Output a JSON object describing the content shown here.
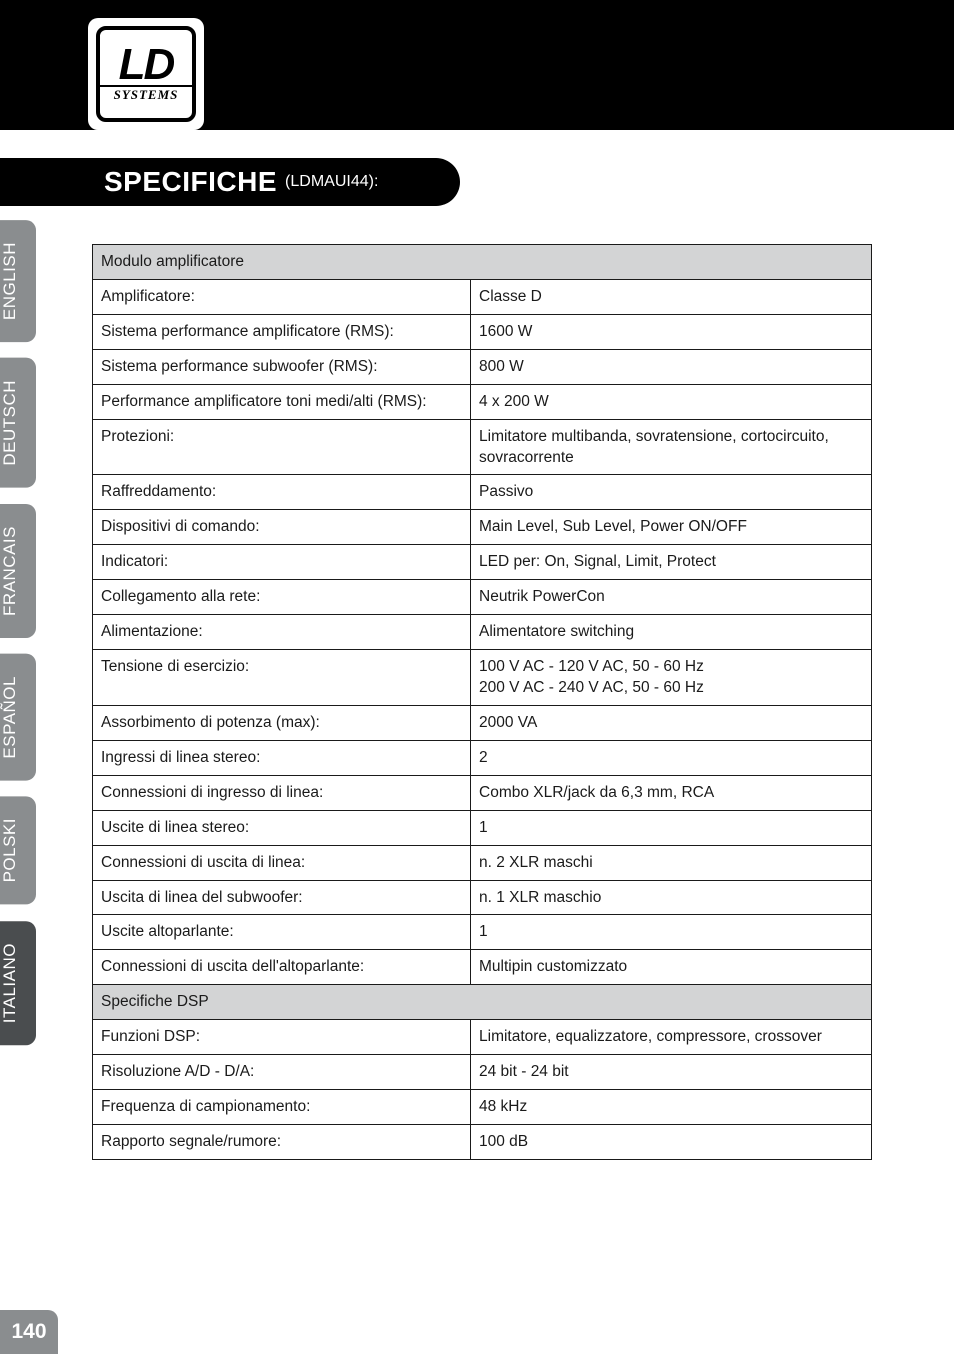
{
  "logo": {
    "main": "LD",
    "sub": "SYSTEMS"
  },
  "title": {
    "main": "SPECIFICHE",
    "sub": "(LDMAUI44):"
  },
  "sidebar": [
    {
      "label": "ENGLISH",
      "class": "tab-grey"
    },
    {
      "label": "DEUTSCH",
      "class": "tab-grey"
    },
    {
      "label": "FRANCAIS",
      "class": "tab-grey"
    },
    {
      "label": "ESPAÑOL",
      "class": "tab-grey"
    },
    {
      "label": "POLSKI",
      "class": "tab-grey"
    },
    {
      "label": "ITALIANO",
      "class": "tab-dark"
    }
  ],
  "table": {
    "sections": [
      {
        "header": "Modulo amplificatore",
        "rows": [
          {
            "label": "Amplificatore:",
            "value": "Classe D"
          },
          {
            "label": "Sistema performance amplificatore (RMS):",
            "value": "1600 W"
          },
          {
            "label": "Sistema performance subwoofer (RMS):",
            "value": "800 W"
          },
          {
            "label": "Performance amplificatore toni medi/alti (RMS):",
            "value": "4 x 200 W"
          },
          {
            "label": "Protezioni:",
            "value": "Limitatore multibanda, sovratensione, cortocircuito, sovracorrente"
          },
          {
            "label": "Raffreddamento:",
            "value": "Passivo"
          },
          {
            "label": "Dispositivi di comando:",
            "value": "Main Level, Sub Level, Power ON/OFF"
          },
          {
            "label": "Indicatori:",
            "value": "LED per: On, Signal, Limit, Protect"
          },
          {
            "label": "Collegamento alla rete:",
            "value": "Neutrik PowerCon"
          },
          {
            "label": "Alimentazione:",
            "value": "Alimentatore switching"
          },
          {
            "label": "Tensione di esercizio:",
            "value": "100 V AC - 120 V AC, 50 - 60 Hz\n200 V AC - 240 V AC, 50 - 60 Hz"
          },
          {
            "label": "Assorbimento di potenza (max):",
            "value": "2000 VA"
          },
          {
            "label": "Ingressi di linea stereo:",
            "value": "2"
          },
          {
            "label": "Connessioni di ingresso di linea:",
            "value": "Combo XLR/jack da 6,3 mm, RCA"
          },
          {
            "label": "Uscite di linea stereo:",
            "value": "1"
          },
          {
            "label": "Connessioni di uscita di linea:",
            "value": "n. 2 XLR maschi"
          },
          {
            "label": "Uscita di linea del subwoofer:",
            "value": "n. 1 XLR maschio"
          },
          {
            "label": "Uscite altoparlante:",
            "value": "1"
          },
          {
            "label": "Connessioni di uscita dell'altoparlante:",
            "value": "Multipin customizzato"
          }
        ]
      },
      {
        "header": "Specifiche DSP",
        "rows": [
          {
            "label": "Funzioni DSP:",
            "value": "Limitatore, equalizzatore, compressore, crossover"
          },
          {
            "label": "Risoluzione A/D - D/A:",
            "value": "24 bit - 24 bit"
          },
          {
            "label": "Frequenza di campionamento:",
            "value": "48 kHz"
          },
          {
            "label": "Rapporto segnale/rumore:",
            "value": "100 dB"
          }
        ]
      }
    ]
  },
  "page_number": "140",
  "colors": {
    "black": "#000000",
    "grey_tab": "#8a8d8f",
    "dark_tab": "#4a4d4f",
    "header_bg": "#d3d4d5",
    "text": "#1a1a1a",
    "white": "#ffffff"
  }
}
